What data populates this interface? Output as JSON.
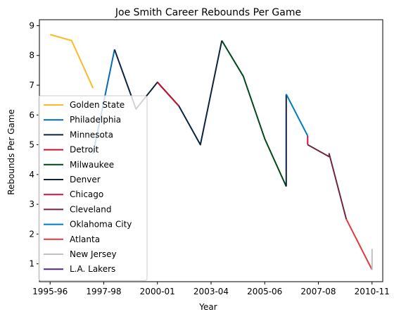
{
  "chart_data": {
    "type": "line",
    "title": "Joe Smith  Career Rebounds Per Game",
    "xlabel": "Year",
    "ylabel": "Rebounds Per Game",
    "xlim": [
      -0.5,
      15.5
    ],
    "ylim": [
      0.4,
      9.2
    ],
    "x_ticks": [
      {
        "x": 0,
        "label": "1995-96"
      },
      {
        "x": 2.5,
        "label": "1997-98"
      },
      {
        "x": 5,
        "label": "2000-01"
      },
      {
        "x": 7.5,
        "label": "2003-04"
      },
      {
        "x": 10,
        "label": "2005-06"
      },
      {
        "x": 12.5,
        "label": "2007-08"
      },
      {
        "x": 15,
        "label": "2010-11"
      }
    ],
    "y_ticks": [
      1,
      2,
      3,
      4,
      5,
      6,
      7,
      8,
      9
    ],
    "legend_position": "lower-left",
    "grid": false,
    "series": [
      {
        "name": "Golden State",
        "color": "#FDB927",
        "points": [
          [
            0,
            8.7
          ],
          [
            1,
            8.5
          ],
          [
            2,
            6.9
          ]
        ]
      },
      {
        "name": "Philadelphia",
        "color": "#006BB6",
        "points": [
          [
            2,
            4.7
          ],
          [
            3,
            8.2
          ]
        ]
      },
      {
        "name": "Minnesota",
        "color": "#0C2340",
        "points": [
          [
            3,
            8.2
          ],
          [
            4,
            6.2
          ],
          [
            5,
            7.1
          ],
          [
            6,
            6.3
          ],
          [
            7,
            5.0
          ],
          [
            8,
            8.5
          ]
        ]
      },
      {
        "name": "Detroit",
        "color": "#C8102E",
        "points": [
          [
            5,
            7.1
          ],
          [
            6,
            6.3
          ]
        ]
      },
      {
        "name": "Milwaukee",
        "color": "#00471B",
        "points": [
          [
            8,
            8.5
          ],
          [
            9,
            7.3
          ],
          [
            10,
            5.2
          ],
          [
            11,
            3.6
          ]
        ]
      },
      {
        "name": "Denver",
        "color": "#0E2240",
        "points": [
          [
            11,
            3.6
          ],
          [
            11,
            6.7
          ]
        ]
      },
      {
        "name": "Chicago",
        "color": "#CE1141",
        "points": [
          [
            12,
            5.3
          ],
          [
            12,
            5.0
          ]
        ]
      },
      {
        "name": "Cleveland",
        "color": "#6F263D",
        "points": [
          [
            12,
            5.0
          ],
          [
            13,
            4.6
          ],
          [
            13,
            4.7
          ],
          [
            13.8,
            2.5
          ]
        ]
      },
      {
        "name": "Oklahoma City",
        "color": "#007AC1",
        "points": [
          [
            11,
            6.7
          ],
          [
            12,
            5.3
          ]
        ]
      },
      {
        "name": "Atlanta",
        "color": "#E03A3E",
        "points": [
          [
            13.8,
            2.5
          ],
          [
            15,
            0.8
          ]
        ]
      },
      {
        "name": "New Jersey",
        "color": "#C0C0C0",
        "points": [
          [
            15,
            0.8
          ],
          [
            15,
            1.5
          ]
        ]
      },
      {
        "name": "L.A. Lakers",
        "color": "#552583",
        "points": []
      }
    ]
  }
}
